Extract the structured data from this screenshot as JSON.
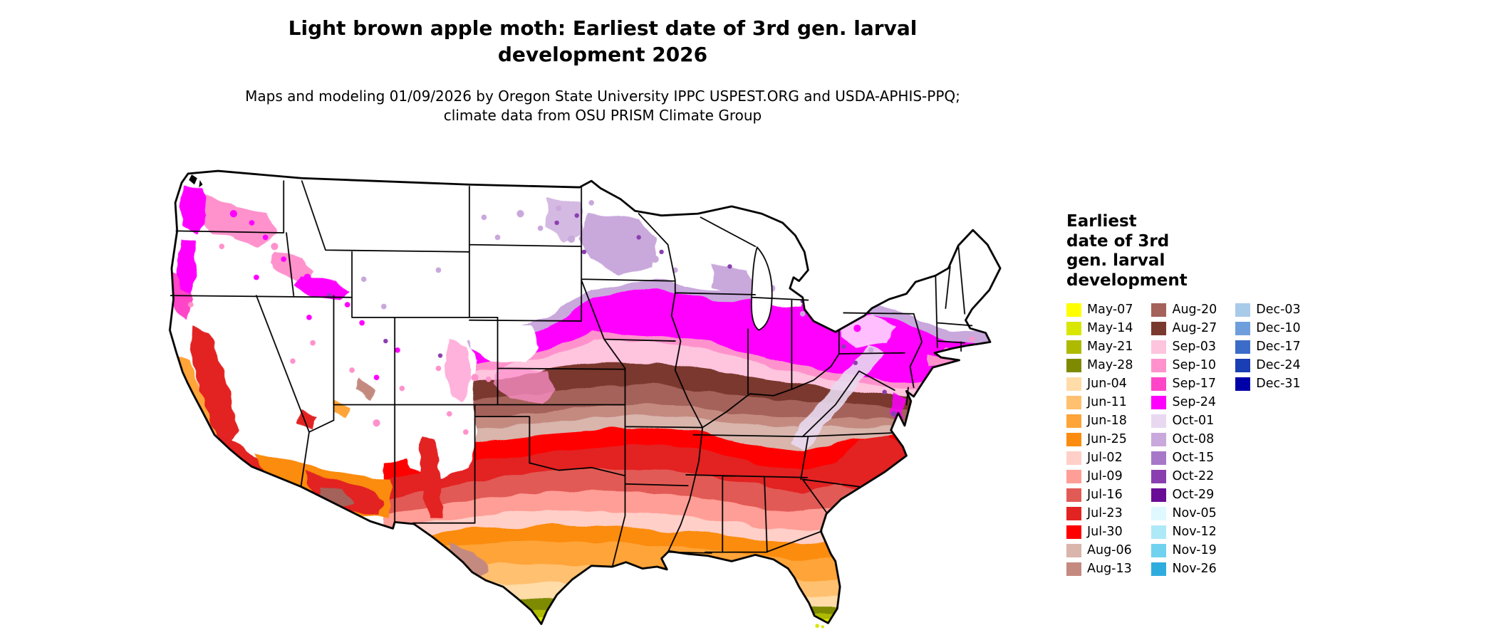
{
  "header": {
    "title": "Light brown apple moth: Earliest date of 3rd gen. larval development 2026",
    "subtitle": "Maps and modeling 01/09/2026 by Oregon State University IPPC USPEST.ORG and USDA-APHIS-PPQ; climate data from OSU PRISM Climate Group"
  },
  "map": {
    "region": "Contiguous United States",
    "no_data_color": "#FFFFFF"
  },
  "legend": {
    "title": "Earliest date of 3rd gen. larval development",
    "columns": [
      {
        "entries": [
          {
            "label": "May-07",
            "color": "#FFFF00"
          },
          {
            "label": "May-14",
            "color": "#D9E600"
          },
          {
            "label": "May-21",
            "color": "#AEBA00"
          },
          {
            "label": "May-28",
            "color": "#7E8A00"
          },
          {
            "label": "Jun-04",
            "color": "#FFDCA8"
          },
          {
            "label": "Jun-11",
            "color": "#FFC070"
          },
          {
            "label": "Jun-18",
            "color": "#FFA438"
          },
          {
            "label": "Jun-25",
            "color": "#FB8C10"
          },
          {
            "label": "Jul-02",
            "color": "#FFCFC8"
          },
          {
            "label": "Jul-09",
            "color": "#FF9E96"
          },
          {
            "label": "Jul-16",
            "color": "#E25A55"
          },
          {
            "label": "Jul-23",
            "color": "#E32222"
          },
          {
            "label": "Jul-30",
            "color": "#FF0000"
          },
          {
            "label": "Aug-06",
            "color": "#D9B5AC"
          },
          {
            "label": "Aug-13",
            "color": "#C48A80"
          }
        ]
      },
      {
        "entries": [
          {
            "label": "Aug-20",
            "color": "#A4625A"
          },
          {
            "label": "Aug-27",
            "color": "#7A392E"
          },
          {
            "label": "Sep-03",
            "color": "#FFC4DE"
          },
          {
            "label": "Sep-10",
            "color": "#FF92CC"
          },
          {
            "label": "Sep-17",
            "color": "#FF45C8"
          },
          {
            "label": "Sep-24",
            "color": "#FF00FF"
          },
          {
            "label": "Oct-01",
            "color": "#E8D9F0"
          },
          {
            "label": "Oct-08",
            "color": "#C9A8DC"
          },
          {
            "label": "Oct-15",
            "color": "#A878C8"
          },
          {
            "label": "Oct-22",
            "color": "#8A3FB0"
          },
          {
            "label": "Oct-29",
            "color": "#6A0D96"
          },
          {
            "label": "Nov-05",
            "color": "#E0F8FF"
          },
          {
            "label": "Nov-12",
            "color": "#AEE9F8"
          },
          {
            "label": "Nov-19",
            "color": "#70D2EE"
          },
          {
            "label": "Nov-26",
            "color": "#2FACDE"
          }
        ]
      },
      {
        "entries": [
          {
            "label": "Dec-03",
            "color": "#A9CBEA"
          },
          {
            "label": "Dec-10",
            "color": "#6E9FDC"
          },
          {
            "label": "Dec-17",
            "color": "#3B6DC8"
          },
          {
            "label": "Dec-24",
            "color": "#1A3EB4"
          },
          {
            "label": "Dec-31",
            "color": "#0000A8"
          }
        ]
      }
    ]
  }
}
